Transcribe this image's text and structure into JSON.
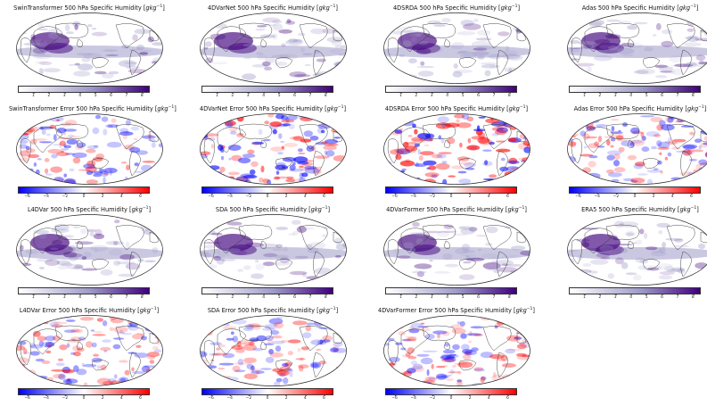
{
  "panels": [
    {
      "title": "SwinTransformer 500 hPa Specific Humidity [",
      "kind": "humidity",
      "variant": 0
    },
    {
      "title": "4DVarNet 500 hPa Specific Humidity [",
      "kind": "humidity",
      "variant": 1
    },
    {
      "title": "4DSRDA 500 hPa Specific Humidity [",
      "kind": "humidity",
      "variant": 2
    },
    {
      "title": "Adas 500 hPa Specific Humidity [",
      "kind": "humidity",
      "variant": 3
    },
    {
      "title": "SwinTransformer Error 500 hPa Specific Humidity [",
      "kind": "error",
      "variant": 0
    },
    {
      "title": "4DVarNet Error 500 hPa Specific Humidity [",
      "kind": "error",
      "variant": 1
    },
    {
      "title": "4DSRDA Error 500 hPa Specific Humidity [",
      "kind": "error",
      "variant": 2
    },
    {
      "title": "Adas Error 500 hPa Specific Humidity [",
      "kind": "error",
      "variant": 3
    },
    {
      "title": "L4DVar 500 hPa Specific Humidity [",
      "kind": "humidity",
      "variant": 4
    },
    {
      "title": "SDA 500 hPa Specific Humidity [",
      "kind": "humidity",
      "variant": 5
    },
    {
      "title": "4DVarFormer 500 hPa Specific Humidity [",
      "kind": "humidity",
      "variant": 6
    },
    {
      "title": "ERA5 500 hPa Specific Humidity [",
      "kind": "humidity",
      "variant": 7
    },
    {
      "title": "L4DVar Error 500 hPa Specific Humidity [",
      "kind": "error",
      "variant": 4
    },
    {
      "title": "SDA Error 500 hPa Specific Humidity [",
      "kind": "error",
      "variant": 5
    },
    {
      "title": "4DVarFormer Error 500 hPa Specific Humidity [",
      "kind": "error",
      "variant": 6
    }
  ],
  "unit": "gkg",
  "unit_exp": "−1",
  "unit_close": "]",
  "humidity_ticks": [
    "1",
    "2",
    "3",
    "4",
    "5",
    "6",
    "7",
    "8"
  ],
  "humidity_range": [
    0,
    8.5
  ],
  "error_ticks": [
    "−6",
    "−4",
    "−2",
    "0",
    "2",
    "4",
    "6"
  ],
  "error_range": [
    -7,
    7
  ],
  "colors": {
    "humidity_low": "#ffffff",
    "humidity_mid": "#9e9ac8",
    "humidity_high": "#3f007d",
    "error_neg": "#0000ff",
    "error_zero": "#ffffff",
    "error_pos": "#ff0000",
    "coast": "#333333"
  }
}
